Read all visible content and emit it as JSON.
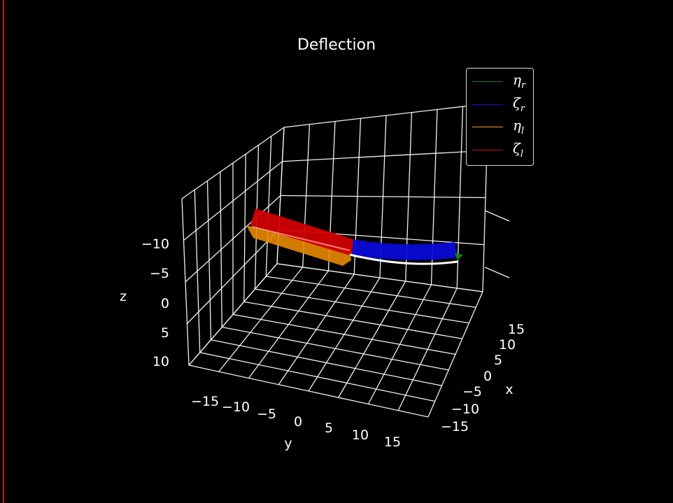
{
  "chart_data": {
    "type": "surface3d",
    "title": "Deflection",
    "xlabel": "x",
    "ylabel": "y",
    "zlabel": "z",
    "x_ticks": [
      "−15",
      "−10",
      "−5",
      "0",
      "5",
      "10",
      "15"
    ],
    "y_ticks": [
      "−15",
      "−10",
      "−5",
      "0",
      "5",
      "10",
      "15"
    ],
    "z_ticks": [
      "−10",
      "−5",
      "0",
      "5",
      "10"
    ],
    "legend_placement": "top-right",
    "grid": true,
    "series": [
      {
        "name": "η",
        "sub": "r",
        "color": "#1a7a1a"
      },
      {
        "name": "ζ",
        "sub": "r",
        "color": "#1010d0"
      },
      {
        "name": "η",
        "sub": "l",
        "color": "#f0a020"
      },
      {
        "name": "ζ",
        "sub": "l",
        "color": "#d01010"
      }
    ]
  }
}
